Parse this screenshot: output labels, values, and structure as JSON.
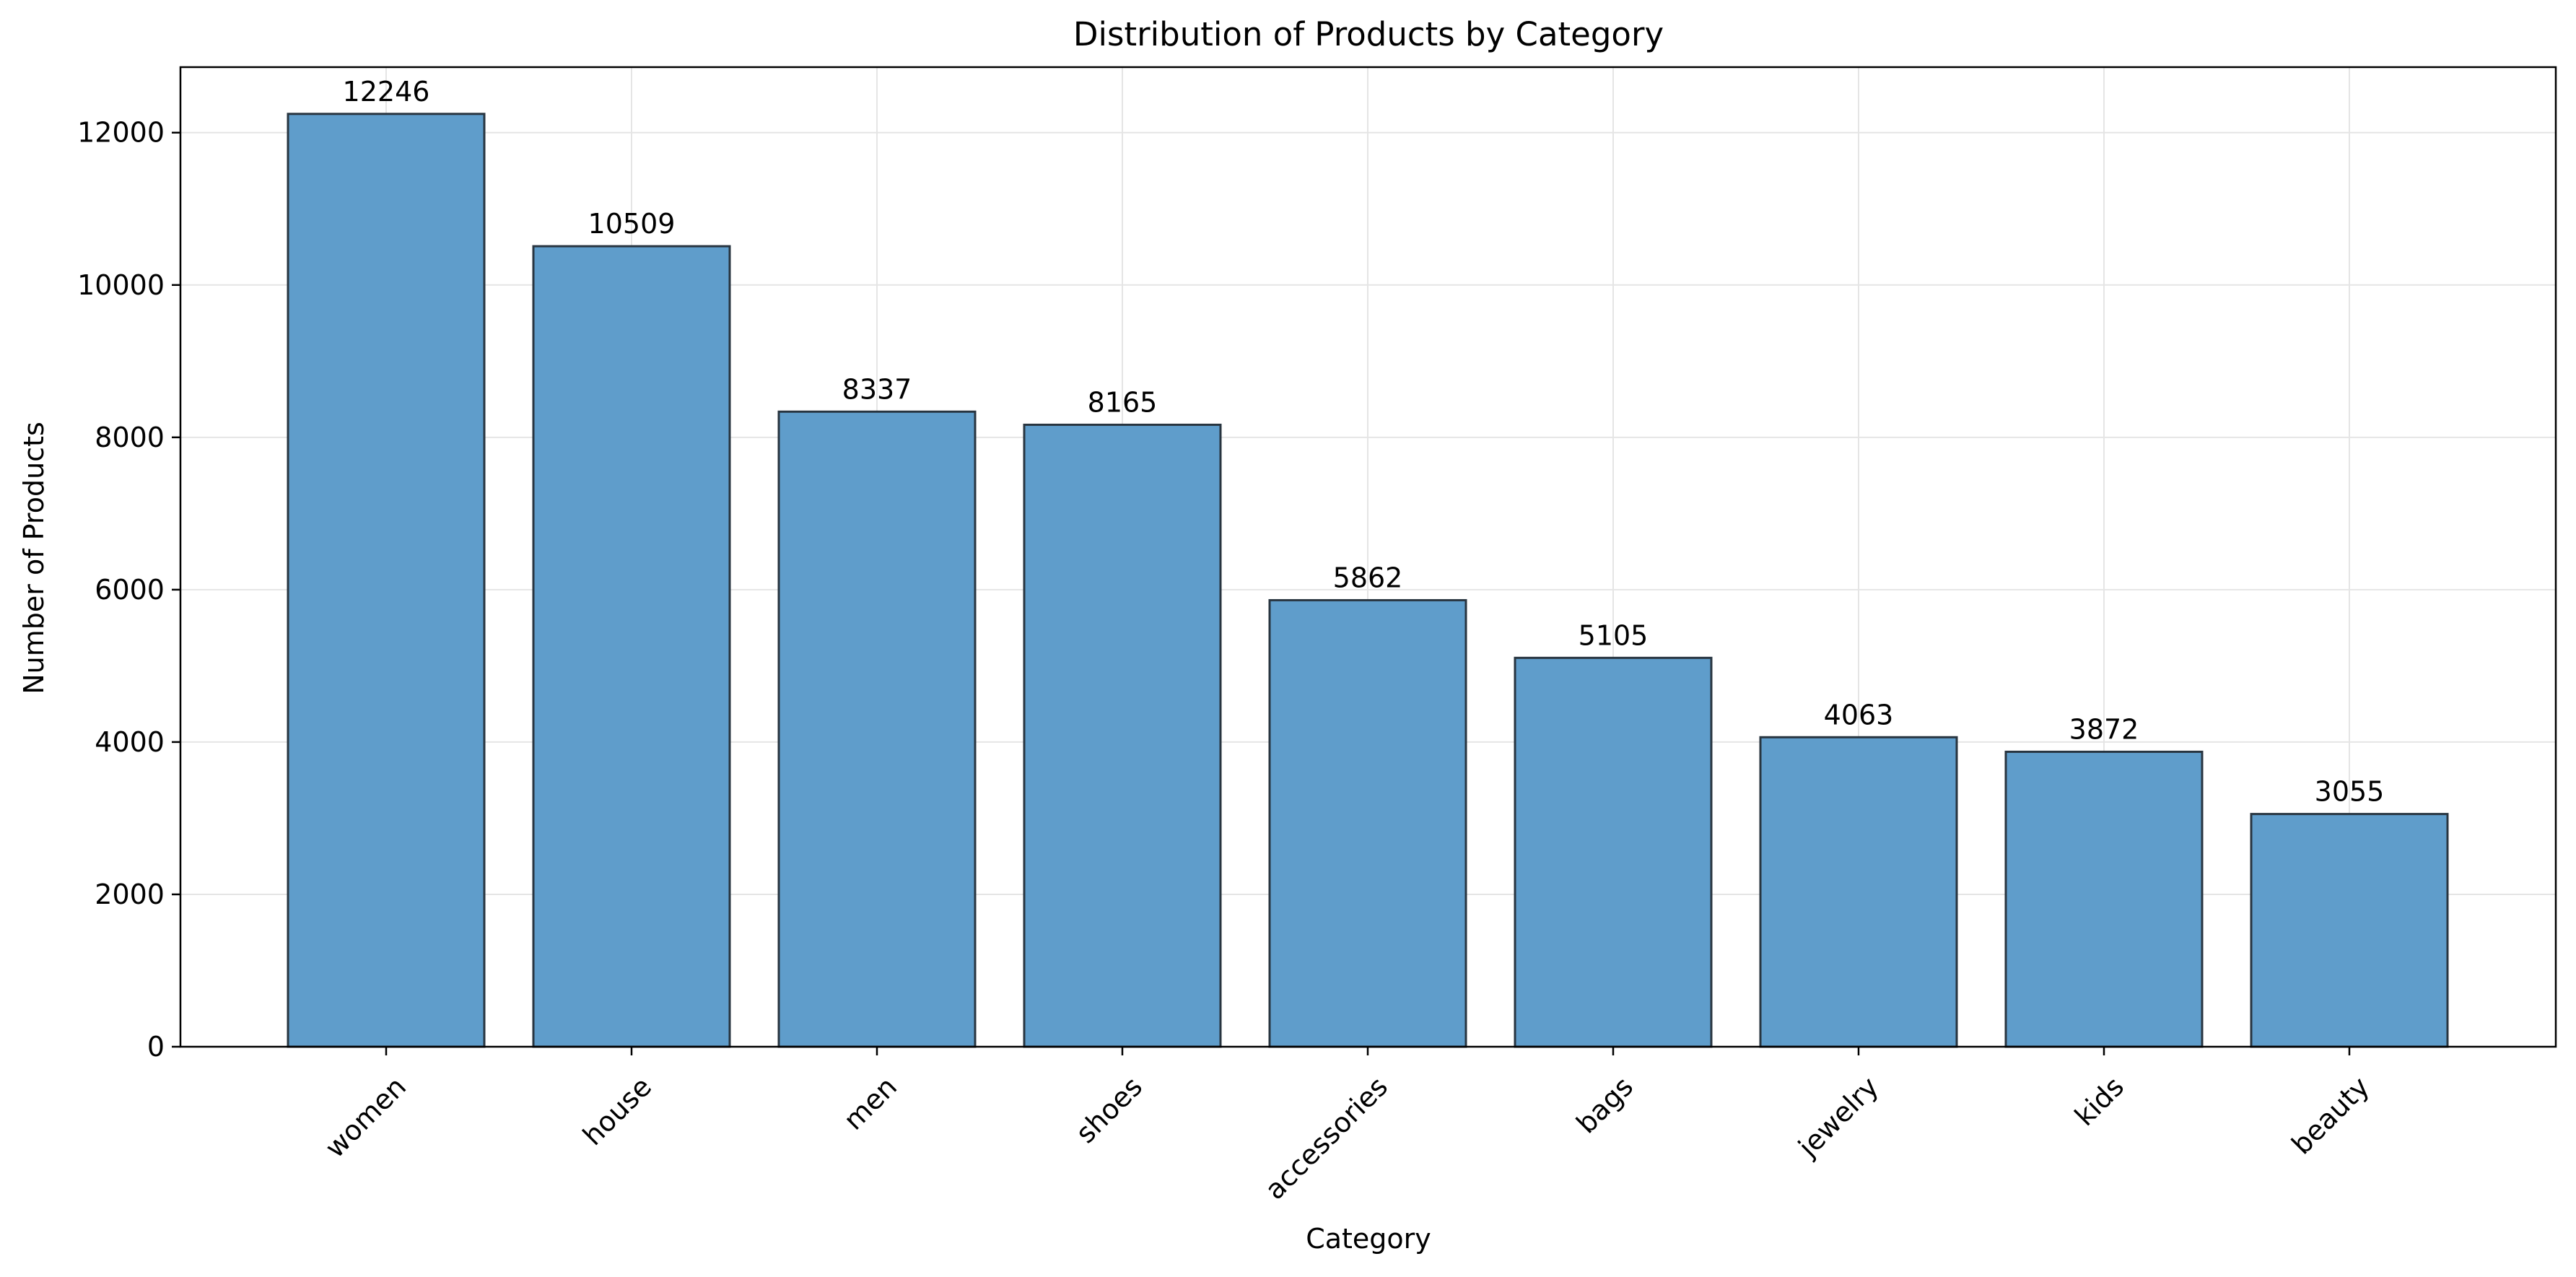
{
  "chart_data": {
    "type": "bar",
    "title": "Distribution of Products by Category",
    "xlabel": "Category",
    "ylabel": "Number of Products",
    "categories": [
      "women",
      "house",
      "men",
      "shoes",
      "accessories",
      "bags",
      "jewelry",
      "kids",
      "beauty"
    ],
    "values": [
      12246,
      10509,
      8337,
      8165,
      5862,
      5105,
      4063,
      3872,
      3055
    ],
    "ylim": [
      0,
      12860
    ],
    "yticks": [
      0,
      2000,
      4000,
      6000,
      8000,
      10000,
      12000
    ],
    "grid": true,
    "x_tick_rotation_deg": 45,
    "data_labels": true,
    "colors": {
      "bar_fill": "#5f9dcb",
      "bar_edge": "#283540",
      "grid": "#e5e5e5",
      "axis": "#000000"
    }
  }
}
